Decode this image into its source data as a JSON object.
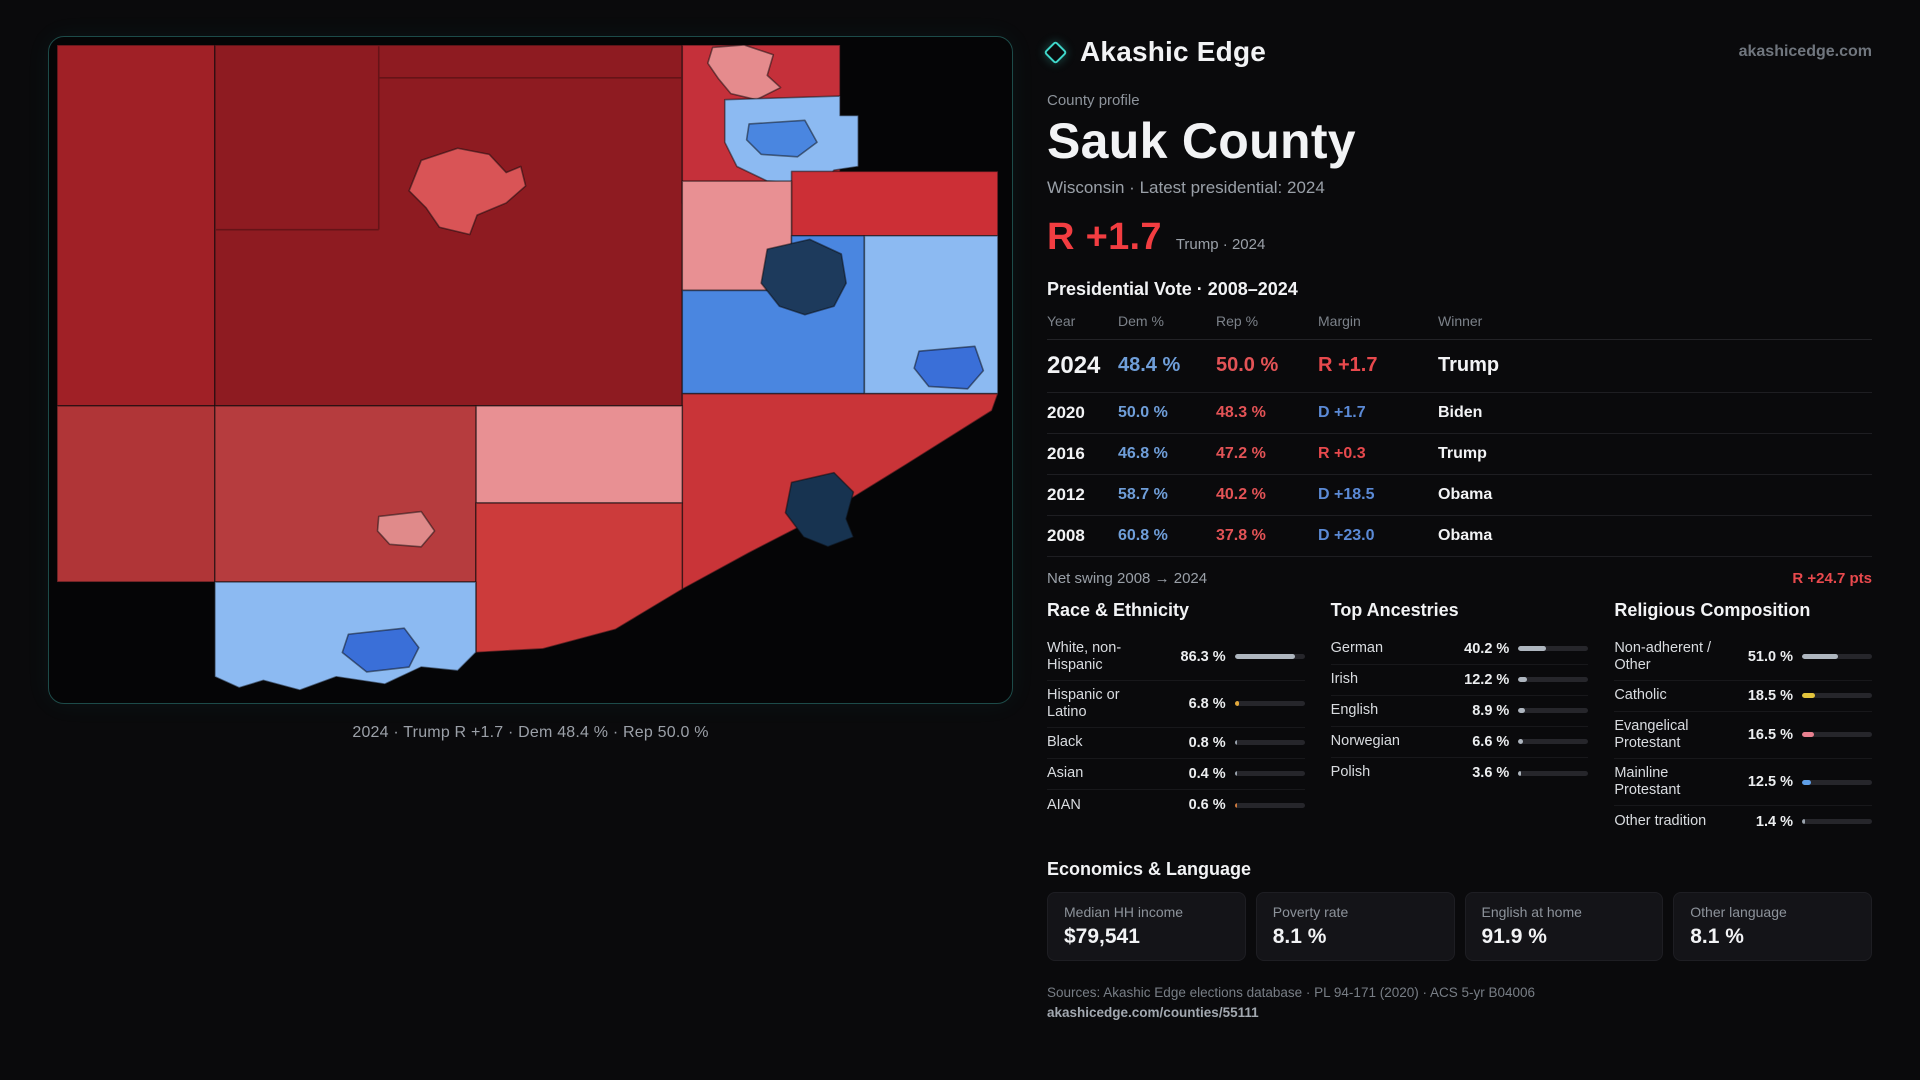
{
  "brand": {
    "name": "Akashic Edge",
    "domain": "akashicedge.com",
    "accent_teal": "#3fd6c9"
  },
  "header": {
    "kicker": "County profile",
    "title": "Sauk County",
    "subtitle": "Wisconsin · Latest presidential: 2024",
    "headline_margin": "R +1.7",
    "headline_note": "Trump · 2024"
  },
  "map": {
    "caption": "2024 · Trump R +1.7 · Dem 48.4 % · Rep 50.0 %",
    "rep_color": "#c5303a",
    "dem_color": "#4a86e0"
  },
  "vote_table": {
    "title": "Presidential Vote · 2008–2024",
    "columns": [
      "Year",
      "Dem %",
      "Rep %",
      "Margin",
      "Winner"
    ],
    "rows": [
      {
        "year": "2024",
        "dem": "48.4 %",
        "rep": "50.0 %",
        "margin": "R +1.7",
        "winner": "Trump"
      },
      {
        "year": "2020",
        "dem": "50.0 %",
        "rep": "48.3 %",
        "margin": "D +1.7",
        "winner": "Biden"
      },
      {
        "year": "2016",
        "dem": "46.8 %",
        "rep": "47.2 %",
        "margin": "R +0.3",
        "winner": "Trump"
      },
      {
        "year": "2012",
        "dem": "58.7 %",
        "rep": "40.2 %",
        "margin": "D +18.5",
        "winner": "Obama"
      },
      {
        "year": "2008",
        "dem": "60.8 %",
        "rep": "37.8 %",
        "margin": "D +23.0",
        "winner": "Obama"
      }
    ],
    "net_swing_label": "Net swing 2008 → 2024",
    "net_swing_value": "R +24.7 pts"
  },
  "demographics": [
    {
      "title": "Race & Ethnicity",
      "rows": [
        {
          "label": "White, non-Hispanic",
          "value": "86.3 %",
          "pct": 86.3,
          "color": "#aeb6bf"
        },
        {
          "label": "Hispanic or Latino",
          "value": "6.8 %",
          "pct": 6.8,
          "color": "#e3a93c"
        },
        {
          "label": "Black",
          "value": "0.8 %",
          "pct": 0.8,
          "color": "#9aa3ad"
        },
        {
          "label": "Asian",
          "value": "0.4 %",
          "pct": 0.4,
          "color": "#9aa3ad"
        },
        {
          "label": "AIAN",
          "value": "0.6 %",
          "pct": 0.6,
          "color": "#cf7b3e"
        }
      ]
    },
    {
      "title": "Top Ancestries",
      "rows": [
        {
          "label": "German",
          "value": "40.2 %",
          "pct": 40.2,
          "color": "#aeb6bf"
        },
        {
          "label": "Irish",
          "value": "12.2 %",
          "pct": 12.2,
          "color": "#aeb6bf"
        },
        {
          "label": "English",
          "value": "8.9 %",
          "pct": 8.9,
          "color": "#aeb6bf"
        },
        {
          "label": "Norwegian",
          "value": "6.6 %",
          "pct": 6.6,
          "color": "#aeb6bf"
        },
        {
          "label": "Polish",
          "value": "3.6 %",
          "pct": 3.6,
          "color": "#aeb6bf"
        }
      ]
    },
    {
      "title": "Religious Composition",
      "rows": [
        {
          "label": "Non-adherent / Other",
          "value": "51.0 %",
          "pct": 51.0,
          "color": "#aeb6bf"
        },
        {
          "label": "Catholic",
          "value": "18.5 %",
          "pct": 18.5,
          "color": "#e3c43c"
        },
        {
          "label": "Evangelical Protestant",
          "value": "16.5 %",
          "pct": 16.5,
          "color": "#e8808f"
        },
        {
          "label": "Mainline Protestant",
          "value": "12.5 %",
          "pct": 12.5,
          "color": "#5f9fe8"
        },
        {
          "label": "Other tradition",
          "value": "1.4 %",
          "pct": 1.4,
          "color": "#9aa3ad"
        }
      ]
    }
  ],
  "economics": {
    "title": "Economics & Language",
    "stats": [
      {
        "label": "Median HH income",
        "value": "$79,541"
      },
      {
        "label": "Poverty rate",
        "value": "8.1 %"
      },
      {
        "label": "English at home",
        "value": "91.9 %"
      },
      {
        "label": "Other language",
        "value": "8.1 %"
      }
    ]
  },
  "footer": {
    "sources": "Sources: Akashic Edge elections database · PL 94-171 (2020) · ACS 5-yr B04006",
    "permalink": "akashicedge.com/counties/55111"
  },
  "chart_data": {
    "type": "table",
    "title": "Presidential Vote · 2008–2024",
    "columns": [
      "Year",
      "Dem %",
      "Rep %",
      "Margin",
      "Winner"
    ],
    "rows": [
      [
        2024,
        48.4,
        50.0,
        "R +1.7",
        "Trump"
      ],
      [
        2020,
        50.0,
        48.3,
        "D +1.7",
        "Biden"
      ],
      [
        2016,
        46.8,
        47.2,
        "R +0.3",
        "Trump"
      ],
      [
        2012,
        58.7,
        40.2,
        "D +18.5",
        "Obama"
      ],
      [
        2008,
        60.8,
        37.8,
        "D +23.0",
        "Obama"
      ]
    ],
    "net_swing_2008_2024": "R +24.7 pts"
  }
}
